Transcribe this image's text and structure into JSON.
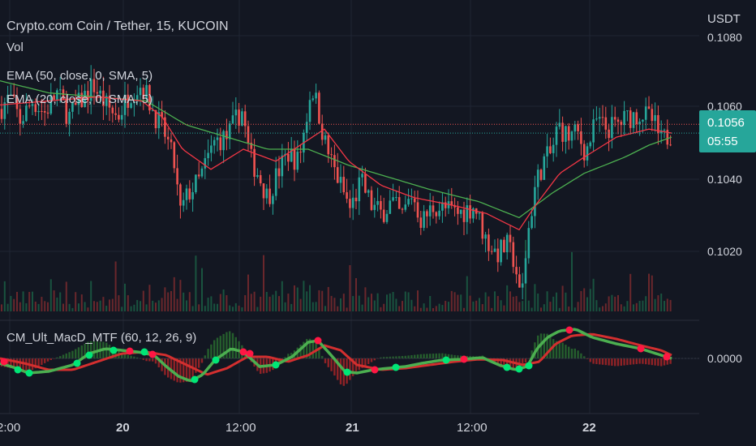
{
  "header": {
    "title": "Crypto.com Coin / Tether, 15, KUCOIN",
    "currency": "USDT"
  },
  "indicators": [
    {
      "label": "Vol"
    },
    {
      "label": "EMA (50, close, 0, SMA, 5)",
      "color": "#26a69a"
    },
    {
      "label": "EMA (20, close, 0, SMA, 5)",
      "color": "#ef5350"
    }
  ],
  "price_tag": {
    "value": "0.1056",
    "countdown": "05:55",
    "color": "#26a69a"
  },
  "macd_panel": {
    "label": "CM_Ult_MacD_MTF (60, 12, 26, 9)",
    "zero_label": "0.0000"
  },
  "colors": {
    "background": "#131722",
    "up": "#26a69a",
    "down": "#ef5350",
    "ema50": "#4caf50",
    "ema20": "#f23645",
    "macd": "#4caf50",
    "signal": "#d32f2f",
    "marker_up": "#00e676",
    "marker_down": "#ff1744"
  },
  "chart_data": {
    "type": "candlestick",
    "y_ticks": [
      "0.1060",
      "0.1040",
      "0.1020"
    ],
    "y_tick_values": [
      0.106,
      0.104,
      0.102
    ],
    "y_top_partial": "0.1080",
    "ylim": [
      0.10095,
      0.10802
    ],
    "x_ticks": [
      "2:00",
      "20",
      "12:00",
      "21",
      "12:00",
      "22"
    ],
    "last_price": 0.1056,
    "prev_close": 0.10582,
    "price_path": [
      [
        0,
        0.1062
      ],
      [
        12,
        0.1065
      ],
      [
        25,
        0.1059
      ],
      [
        40,
        0.1064
      ],
      [
        55,
        0.1061
      ],
      [
        70,
        0.1066
      ],
      [
        85,
        0.106
      ],
      [
        100,
        0.1064
      ],
      [
        115,
        0.1068
      ],
      [
        130,
        0.1063
      ],
      [
        145,
        0.106
      ],
      [
        160,
        0.1066
      ],
      [
        175,
        0.1068
      ],
      [
        190,
        0.1061
      ],
      [
        205,
        0.1055
      ],
      [
        215,
        0.1048
      ],
      [
        222,
        0.1036
      ],
      [
        232,
        0.1041
      ],
      [
        245,
        0.1044
      ],
      [
        255,
        0.1049
      ],
      [
        265,
        0.1054
      ],
      [
        280,
        0.1055
      ],
      [
        298,
        0.1062
      ],
      [
        308,
        0.105
      ],
      [
        318,
        0.1046
      ],
      [
        330,
        0.104
      ],
      [
        342,
        0.1046
      ],
      [
        355,
        0.1051
      ],
      [
        368,
        0.1049
      ],
      [
        378,
        0.106
      ],
      [
        384,
        0.1068
      ],
      [
        392,
        0.1062
      ],
      [
        400,
        0.1054
      ],
      [
        410,
        0.1048
      ],
      [
        420,
        0.1043
      ],
      [
        432,
        0.1037
      ],
      [
        445,
        0.1044
      ],
      [
        458,
        0.1038
      ],
      [
        470,
        0.1036
      ],
      [
        483,
        0.1039
      ],
      [
        495,
        0.1035
      ],
      [
        508,
        0.1041
      ],
      [
        520,
        0.1034
      ],
      [
        535,
        0.1038
      ],
      [
        550,
        0.1037
      ],
      [
        565,
        0.1036
      ],
      [
        585,
        0.1038
      ],
      [
        598,
        0.103
      ],
      [
        612,
        0.1026
      ],
      [
        625,
        0.1028
      ],
      [
        635,
        0.1024
      ],
      [
        642,
        0.1013
      ],
      [
        650,
        0.103
      ],
      [
        660,
        0.1043
      ],
      [
        670,
        0.1049
      ],
      [
        680,
        0.1051
      ],
      [
        688,
        0.1058
      ],
      [
        700,
        0.1055
      ],
      [
        712,
        0.1056
      ],
      [
        722,
        0.1051
      ],
      [
        735,
        0.1059
      ],
      [
        748,
        0.1057
      ],
      [
        760,
        0.1058
      ],
      [
        775,
        0.106
      ],
      [
        790,
        0.1061
      ],
      [
        805,
        0.1059
      ],
      [
        815,
        0.1054
      ],
      [
        828,
        0.1056
      ]
    ],
    "ema20_path": [
      [
        0,
        0.1063
      ],
      [
        60,
        0.1064
      ],
      [
        120,
        0.1065
      ],
      [
        175,
        0.1064
      ],
      [
        200,
        0.106
      ],
      [
        225,
        0.1052
      ],
      [
        260,
        0.1047
      ],
      [
        300,
        0.1052
      ],
      [
        340,
        0.1049
      ],
      [
        370,
        0.1053
      ],
      [
        400,
        0.1057
      ],
      [
        430,
        0.1049
      ],
      [
        470,
        0.1043
      ],
      [
        510,
        0.104
      ],
      [
        560,
        0.1038
      ],
      [
        600,
        0.1036
      ],
      [
        640,
        0.1032
      ],
      [
        660,
        0.1038
      ],
      [
        690,
        0.1046
      ],
      [
        720,
        0.105
      ],
      [
        760,
        0.1055
      ],
      [
        800,
        0.1057
      ],
      [
        828,
        0.1056
      ]
    ],
    "ema50_path": [
      [
        0,
        0.1069
      ],
      [
        60,
        0.1066
      ],
      [
        120,
        0.1065
      ],
      [
        180,
        0.1064
      ],
      [
        230,
        0.1058
      ],
      [
        280,
        0.1055
      ],
      [
        330,
        0.1052
      ],
      [
        380,
        0.1052
      ],
      [
        430,
        0.1048
      ],
      [
        480,
        0.1045
      ],
      [
        530,
        0.1042
      ],
      [
        590,
        0.1039
      ],
      [
        640,
        0.1035
      ],
      [
        680,
        0.1041
      ],
      [
        720,
        0.1046
      ],
      [
        770,
        0.105
      ],
      [
        800,
        0.1053
      ],
      [
        828,
        0.1055
      ]
    ],
    "macd_path": [
      [
        0,
        -0.3
      ],
      [
        20,
        -0.6
      ],
      [
        35,
        -0.9
      ],
      [
        60,
        -0.8
      ],
      [
        90,
        -0.4
      ],
      [
        110,
        0.3
      ],
      [
        130,
        0.6
      ],
      [
        150,
        0.5
      ],
      [
        170,
        0.4
      ],
      [
        190,
        0.2
      ],
      [
        205,
        -0.5
      ],
      [
        220,
        -1.1
      ],
      [
        235,
        -1.4
      ],
      [
        250,
        -1.0
      ],
      [
        265,
        -0.1
      ],
      [
        285,
        0.6
      ],
      [
        300,
        0.4
      ],
      [
        320,
        -0.5
      ],
      [
        340,
        -0.4
      ],
      [
        360,
        0.1
      ],
      [
        380,
        1.0
      ],
      [
        392,
        1.1
      ],
      [
        410,
        0.1
      ],
      [
        425,
        -0.8
      ],
      [
        440,
        -0.9
      ],
      [
        460,
        -0.7
      ],
      [
        480,
        -0.6
      ],
      [
        500,
        -0.5
      ],
      [
        520,
        -0.3
      ],
      [
        545,
        -0.1
      ],
      [
        570,
        -0.05
      ],
      [
        595,
        0.05
      ],
      [
        615,
        -0.4
      ],
      [
        635,
        -0.7
      ],
      [
        650,
        -0.5
      ],
      [
        662,
        0.6
      ],
      [
        675,
        1.3
      ],
      [
        690,
        1.7
      ],
      [
        710,
        1.8
      ],
      [
        730,
        1.3
      ],
      [
        760,
        0.9
      ],
      [
        790,
        0.6
      ],
      [
        815,
        0.2
      ],
      [
        828,
        0.0
      ]
    ],
    "signal_path": [
      [
        0,
        0.0
      ],
      [
        30,
        -0.3
      ],
      [
        60,
        -0.7
      ],
      [
        90,
        -0.7
      ],
      [
        120,
        -0.2
      ],
      [
        150,
        0.3
      ],
      [
        180,
        0.4
      ],
      [
        205,
        0.2
      ],
      [
        230,
        -0.4
      ],
      [
        255,
        -1.0
      ],
      [
        280,
        -0.6
      ],
      [
        305,
        0.1
      ],
      [
        330,
        0.1
      ],
      [
        355,
        -0.2
      ],
      [
        380,
        0.2
      ],
      [
        400,
        0.8
      ],
      [
        420,
        0.5
      ],
      [
        440,
        -0.4
      ],
      [
        470,
        -0.7
      ],
      [
        500,
        -0.6
      ],
      [
        530,
        -0.4
      ],
      [
        560,
        -0.2
      ],
      [
        590,
        -0.05
      ],
      [
        620,
        -0.1
      ],
      [
        645,
        -0.4
      ],
      [
        665,
        -0.2
      ],
      [
        685,
        0.9
      ],
      [
        705,
        1.4
      ],
      [
        730,
        1.5
      ],
      [
        760,
        1.2
      ],
      [
        790,
        0.8
      ],
      [
        815,
        0.5
      ],
      [
        828,
        0.2
      ]
    ],
    "macd_markers_up": [
      [
        22,
        -0.7
      ],
      [
        36,
        -0.9
      ],
      [
        95,
        -0.3
      ],
      [
        110,
        0.2
      ],
      [
        140,
        0.5
      ],
      [
        178,
        0.4
      ],
      [
        240,
        -1.3
      ],
      [
        266,
        -0.1
      ],
      [
        340,
        -0.4
      ],
      [
        428,
        -0.85
      ],
      [
        488,
        -0.55
      ],
      [
        550,
        -0.1
      ],
      [
        625,
        -0.55
      ],
      [
        640,
        -0.65
      ],
      [
        652,
        -0.45
      ]
    ],
    "macd_markers_down": [
      [
        5,
        -0.2
      ],
      [
        160,
        0.45
      ],
      [
        188,
        0.25
      ],
      [
        300,
        0.4
      ],
      [
        308,
        0.3
      ],
      [
        392,
        1.1
      ],
      [
        462,
        -0.7
      ],
      [
        572,
        -0.05
      ],
      [
        702,
        1.75
      ],
      [
        790,
        0.6
      ],
      [
        822,
        0.1
      ]
    ]
  }
}
